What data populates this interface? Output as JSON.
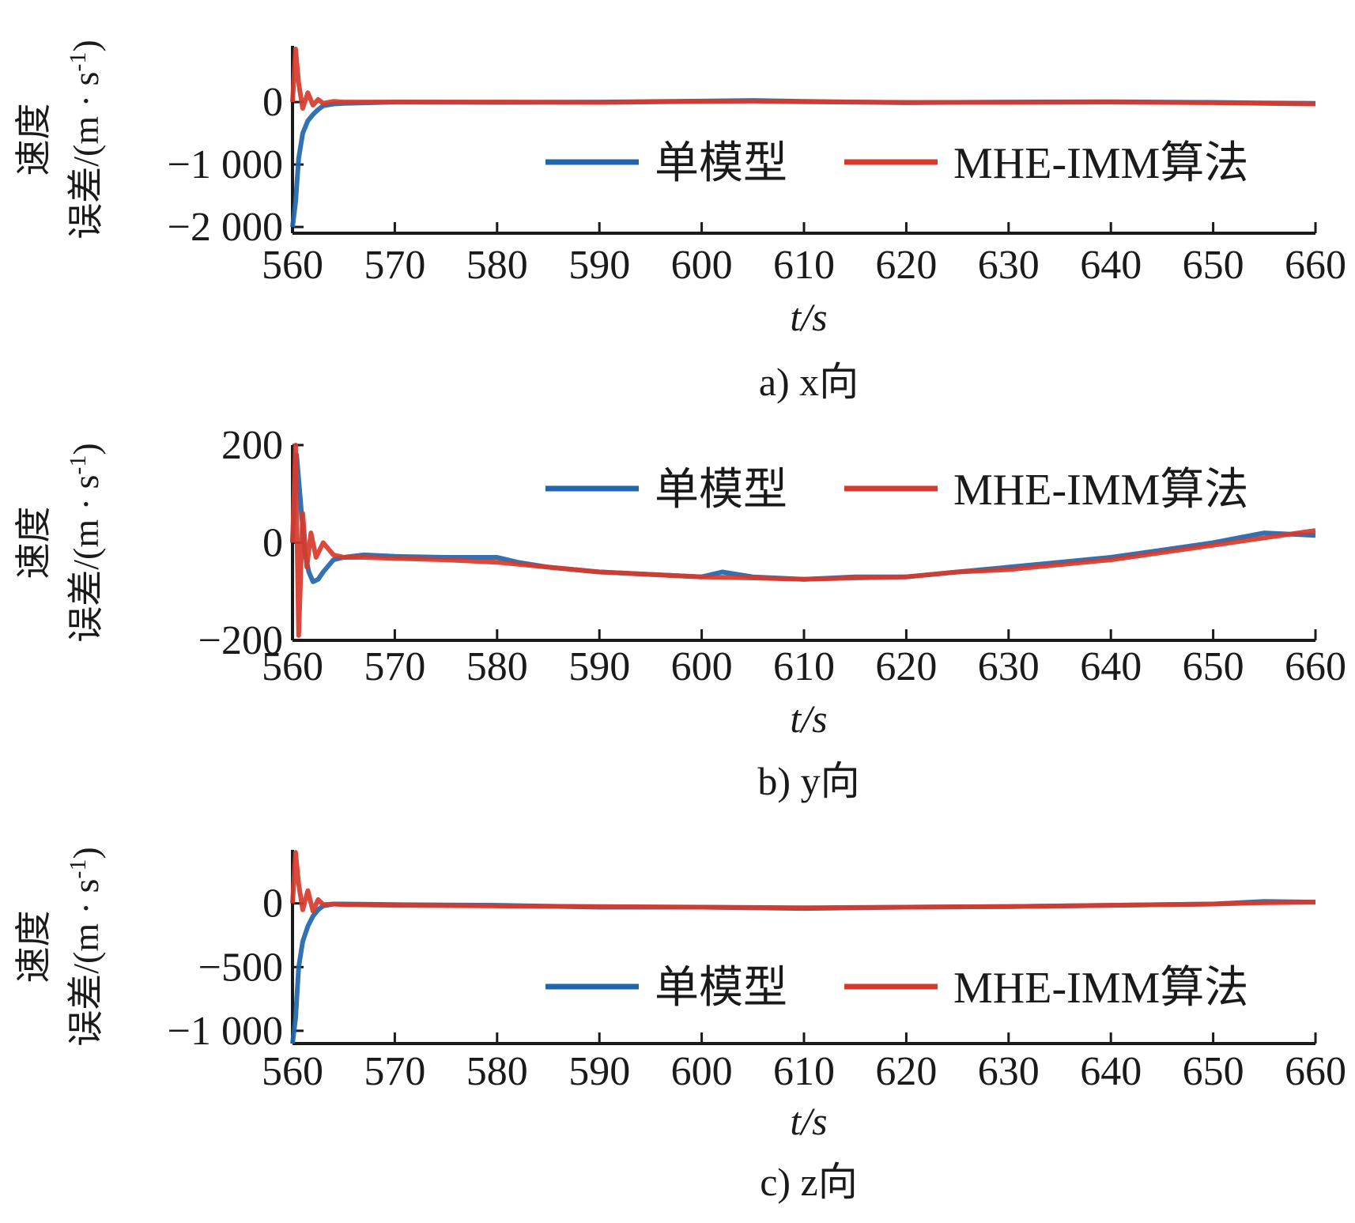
{
  "colors": {
    "single": "#2166ac",
    "mhe": "#d73a2a",
    "axis": "#1a1a1a"
  },
  "chart_data": [
    {
      "type": "line",
      "caption": "a) x向",
      "xlabel": "t/s",
      "ylabel_line1": "速度",
      "ylabel_line2": "误差/(m · s",
      "ylabel_sup": "-1",
      "ylabel_close": ")",
      "xlim": [
        560,
        660
      ],
      "ylim": [
        -2100,
        900
      ],
      "xticks": [
        560,
        570,
        580,
        590,
        600,
        610,
        620,
        630,
        640,
        650,
        660
      ],
      "xtick_labels": [
        "560",
        "570",
        "580",
        "590",
        "600",
        "610",
        "620",
        "630",
        "640",
        "650",
        "660"
      ],
      "yticks": [
        0,
        -1000,
        -2000
      ],
      "ytick_labels": [
        "0",
        "−1 000",
        "−2 000"
      ],
      "legend": {
        "position": "center-right",
        "entries": [
          "单模型",
          "MHE-IMM算法"
        ]
      },
      "series": [
        {
          "name": "单模型",
          "x": [
            560,
            560.3,
            560.6,
            561,
            561.5,
            562,
            562.5,
            563,
            564,
            565,
            570,
            580,
            590,
            600,
            605,
            610,
            620,
            630,
            640,
            650,
            655,
            660
          ],
          "y": [
            -2000,
            -1600,
            -900,
            -500,
            -300,
            -200,
            -120,
            -60,
            -30,
            -20,
            0,
            -5,
            0,
            15,
            25,
            10,
            -10,
            0,
            5,
            -5,
            -15,
            -20
          ]
        },
        {
          "name": "MHE-IMM算法",
          "x": [
            560,
            560.3,
            560.6,
            561,
            561.5,
            562,
            562.5,
            563,
            564,
            565,
            570,
            580,
            590,
            600,
            605,
            610,
            620,
            630,
            640,
            650,
            655,
            660
          ],
          "y": [
            0,
            850,
            300,
            -100,
            150,
            -50,
            40,
            -20,
            10,
            0,
            0,
            0,
            -5,
            10,
            15,
            5,
            -5,
            -5,
            0,
            -10,
            -20,
            -30
          ]
        }
      ]
    },
    {
      "type": "line",
      "caption": "b) y向",
      "xlabel": "t/s",
      "ylabel_line1": "速度",
      "ylabel_line2": "误差/(m · s",
      "ylabel_sup": "-1",
      "ylabel_close": ")",
      "xlim": [
        560,
        660
      ],
      "ylim": [
        -200,
        200
      ],
      "xticks": [
        560,
        570,
        580,
        590,
        600,
        610,
        620,
        630,
        640,
        650,
        660
      ],
      "xtick_labels": [
        "560",
        "570",
        "580",
        "590",
        "600",
        "610",
        "620",
        "630",
        "640",
        "650",
        "660"
      ],
      "yticks": [
        200,
        0,
        -200
      ],
      "ytick_labels": [
        "200",
        "0",
        "−200"
      ],
      "legend": {
        "position": "top-right",
        "entries": [
          "单模型",
          "MHE-IMM算法"
        ]
      },
      "series": [
        {
          "name": "单模型",
          "x": [
            560,
            560.4,
            560.8,
            561.2,
            561.6,
            562,
            562.5,
            563,
            564,
            565,
            567,
            570,
            575,
            580,
            582,
            585,
            590,
            595,
            600,
            602,
            605,
            610,
            615,
            620,
            625,
            630,
            635,
            640,
            645,
            650,
            655,
            660
          ],
          "y": [
            0,
            180,
            80,
            -20,
            -60,
            -80,
            -75,
            -60,
            -35,
            -30,
            -25,
            -28,
            -30,
            -30,
            -40,
            -50,
            -60,
            -65,
            -70,
            -60,
            -70,
            -75,
            -70,
            -70,
            -60,
            -50,
            -40,
            -30,
            -15,
            0,
            20,
            15
          ]
        },
        {
          "name": "MHE-IMM算法",
          "x": [
            560,
            560.3,
            560.6,
            561,
            561.4,
            561.8,
            562.3,
            563,
            564,
            565,
            567,
            570,
            575,
            580,
            585,
            590,
            595,
            600,
            605,
            610,
            615,
            620,
            625,
            630,
            635,
            640,
            645,
            650,
            655,
            660
          ],
          "y": [
            0,
            200,
            -190,
            60,
            -50,
            20,
            -30,
            0,
            -25,
            -30,
            -30,
            -32,
            -35,
            -40,
            -50,
            -60,
            -65,
            -70,
            -72,
            -75,
            -72,
            -70,
            -60,
            -55,
            -45,
            -35,
            -20,
            -5,
            10,
            25
          ]
        }
      ]
    },
    {
      "type": "line",
      "caption": "c) z向",
      "xlabel": "t/s",
      "ylabel_line1": "速度",
      "ylabel_line2": "误差/(m · s",
      "ylabel_sup": "-1",
      "ylabel_close": ")",
      "xlim": [
        560,
        660
      ],
      "ylim": [
        -1100,
        420
      ],
      "xticks": [
        560,
        570,
        580,
        590,
        600,
        610,
        620,
        630,
        640,
        650,
        660
      ],
      "xtick_labels": [
        "560",
        "570",
        "580",
        "590",
        "600",
        "610",
        "620",
        "630",
        "640",
        "650",
        "660"
      ],
      "yticks": [
        0,
        -500,
        -1000
      ],
      "ytick_labels": [
        "0",
        "−500",
        "−1 000"
      ],
      "legend": {
        "position": "center-right",
        "entries": [
          "单模型",
          "MHE-IMM算法"
        ]
      },
      "series": [
        {
          "name": "单模型",
          "x": [
            560,
            560.3,
            560.6,
            561,
            561.5,
            562,
            562.5,
            563,
            564,
            565,
            570,
            580,
            590,
            600,
            610,
            620,
            630,
            640,
            650,
            655,
            660
          ],
          "y": [
            -1100,
            -900,
            -500,
            -300,
            -180,
            -100,
            -50,
            -20,
            -5,
            -5,
            -10,
            -15,
            -30,
            -30,
            -40,
            -30,
            -25,
            -15,
            -5,
            15,
            10
          ]
        },
        {
          "name": "MHE-IMM算法",
          "x": [
            560,
            560.3,
            560.6,
            561,
            561.5,
            562,
            562.5,
            563,
            564,
            565,
            570,
            580,
            590,
            600,
            610,
            620,
            630,
            640,
            650,
            655,
            660
          ],
          "y": [
            0,
            400,
            150,
            -50,
            100,
            -60,
            30,
            -10,
            -5,
            -10,
            -15,
            -20,
            -25,
            -30,
            -35,
            -30,
            -25,
            -15,
            -5,
            5,
            10
          ]
        }
      ]
    }
  ]
}
